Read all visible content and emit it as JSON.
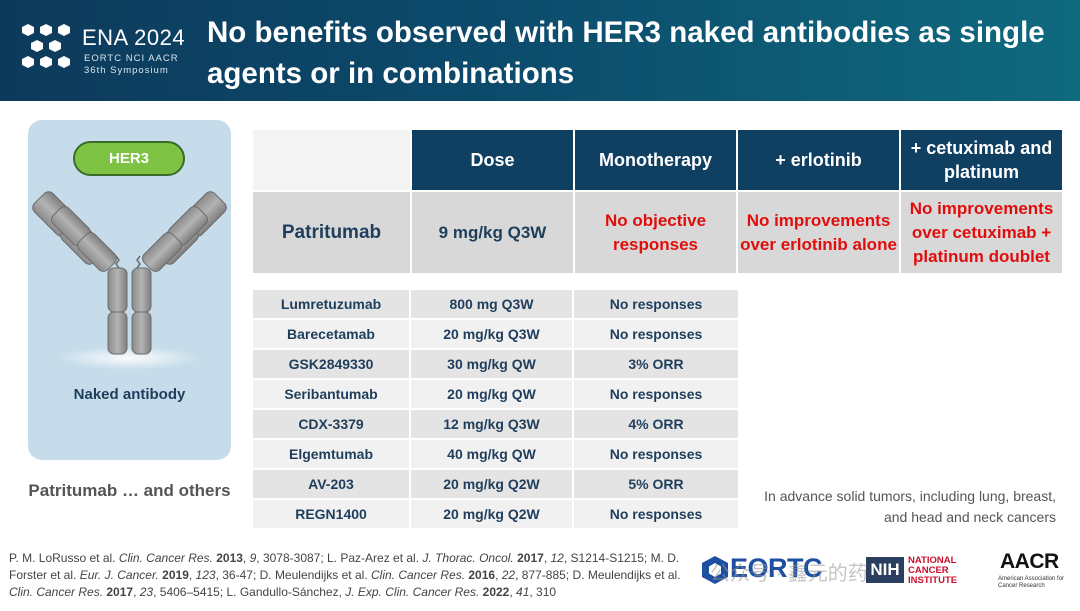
{
  "header": {
    "conference": "ENA 2024",
    "organizers": "EORTC NCI AACR",
    "symposium": "36th Symposium",
    "title": "No benefits observed with HER3 naked antibodies as single agents or in combinations"
  },
  "left_panel": {
    "target": "HER3",
    "caption": "Naked antibody",
    "others": "Patritumab … and others"
  },
  "top_table": {
    "columns": [
      "Dose",
      "Monotherapy",
      "+ erlotinib",
      "+ cetuximab and platinum"
    ],
    "row": {
      "drug": "Patritumab",
      "dose": "9 mg/kg Q3W",
      "monotherapy": "No objective responses",
      "erlotinib": "No improvements over erlotinib alone",
      "cetuximab": "No improvements over cetuximab + platinum doublet"
    }
  },
  "bottom_table": [
    {
      "drug": "Lumretuzumab",
      "dose": "800 mg Q3W",
      "result": "No responses"
    },
    {
      "drug": "Barecetamab",
      "dose": "20 mg/kg Q3W",
      "result": "No responses"
    },
    {
      "drug": "GSK2849330",
      "dose": "30 mg/kg QW",
      "result": "3% ORR"
    },
    {
      "drug": "Seribantumab",
      "dose": "20 mg/kg QW",
      "result": "No responses"
    },
    {
      "drug": "CDX-3379",
      "dose": "12 mg/kg Q3W",
      "result": "4% ORR"
    },
    {
      "drug": "Elgemtumab",
      "dose": "40 mg/kg QW",
      "result": "No responses"
    },
    {
      "drug": "AV-203",
      "dose": "20 mg/kg Q2W",
      "result": "5% ORR"
    },
    {
      "drug": "REGN1400",
      "dose": "20 mg/kg Q2W",
      "result": "No responses"
    }
  ],
  "note": "In advance solid tumors, including lung, breast, and head and neck cancers",
  "logos": {
    "eortc": "EORTC",
    "nih": "NIH",
    "nci": "NATIONAL CANCER INSTITUTE",
    "aacr": "AACR",
    "aacr_sub": "American Association for Cancer Research",
    "watermark": "公众号 · 鑫元的药"
  },
  "colors": {
    "header_dark": "#0d3a5b",
    "table_header": "#0f3f61",
    "highlight_red": "#e10d0d",
    "pill_green": "#7dc243",
    "panel_blue": "#c6dcea"
  }
}
